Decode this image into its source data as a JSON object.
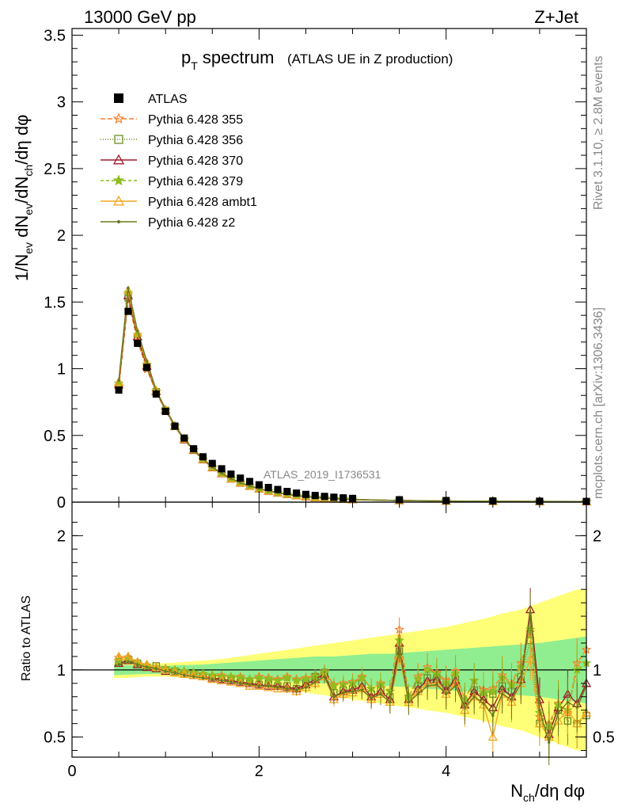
{
  "header": {
    "left": "13000 GeV pp",
    "right": "Z+Jet"
  },
  "side_text": {
    "rivet": "Rivet 3.1.10, ≥ 2.8M events",
    "mcplots": "mcplots.cern.ch [arXiv:1306.3436]"
  },
  "chart_data": [
    {
      "type": "line",
      "title_main": "p",
      "title_sub": "T",
      "title_rest": " spectrum",
      "title_paren": "(ATLAS UE in Z production)",
      "watermark": "ATLAS_2019_I1736531",
      "ylabel": {
        "p1": "1/N",
        "s1": "ev",
        "p2": " dN",
        "s2": "ev",
        "p3": "/dN",
        "s3": "ch",
        "p4": "/dη dφ"
      },
      "xlim": [
        0,
        5.5
      ],
      "ylim": [
        0,
        3.55
      ],
      "yticks": [
        "0",
        "0.5",
        "1",
        "1.5",
        "2",
        "2.5",
        "3",
        "3.5"
      ],
      "x": [
        0.5,
        0.6,
        0.7,
        0.8,
        0.9,
        1.0,
        1.1,
        1.2,
        1.3,
        1.4,
        1.5,
        1.6,
        1.7,
        1.8,
        1.9,
        2.0,
        2.1,
        2.2,
        2.3,
        2.4,
        2.5,
        2.6,
        2.7,
        2.8,
        2.9,
        3.0,
        3.5,
        4.0,
        4.5,
        5.0,
        5.5
      ],
      "data": {
        "name": "ATLAS",
        "values": [
          0.84,
          1.43,
          1.19,
          1.01,
          0.81,
          0.68,
          0.57,
          0.48,
          0.4,
          0.34,
          0.29,
          0.25,
          0.21,
          0.18,
          0.155,
          0.13,
          0.11,
          0.095,
          0.08,
          0.068,
          0.058,
          0.05,
          0.043,
          0.037,
          0.032,
          0.028,
          0.018,
          0.012,
          0.009,
          0.007,
          0.005
        ]
      },
      "mc": [
        0.88,
        1.55,
        1.24,
        1.02,
        0.83,
        0.69,
        0.57,
        0.47,
        0.39,
        0.32,
        0.26,
        0.215,
        0.175,
        0.145,
        0.12,
        0.1,
        0.083,
        0.07,
        0.058,
        0.049,
        0.041,
        0.035,
        0.03,
        0.026,
        0.022,
        0.019,
        0.012,
        0.008,
        0.006,
        0.005,
        0.004
      ]
    },
    {
      "type": "line",
      "ylabel": "Ratio to ATLAS",
      "xlabel": {
        "p1": "N",
        "s1": "ch",
        "p2": "/dη dφ"
      },
      "xlim": [
        0,
        5.5
      ],
      "ylim": [
        0.35,
        2.25
      ],
      "yticks": [
        "0.5",
        "1",
        "2"
      ],
      "xticks": [
        "0",
        "2",
        "4"
      ],
      "band_x": [
        0.45,
        0.6,
        0.8,
        1.0,
        1.2,
        1.4,
        1.6,
        1.8,
        2.0,
        2.2,
        2.4,
        2.6,
        2.8,
        3.0,
        3.2,
        3.4,
        3.6,
        3.8,
        4.0,
        4.2,
        4.4,
        4.6,
        4.8,
        5.0,
        5.2,
        5.4,
        5.5
      ],
      "band_stat": [
        0.04,
        0.035,
        0.03,
        0.03,
        0.035,
        0.04,
        0.05,
        0.06,
        0.07,
        0.08,
        0.09,
        0.1,
        0.1,
        0.11,
        0.12,
        0.12,
        0.13,
        0.14,
        0.15,
        0.16,
        0.17,
        0.18,
        0.19,
        0.2,
        0.22,
        0.24,
        0.25
      ],
      "band_tot": [
        0.06,
        0.06,
        0.05,
        0.05,
        0.06,
        0.07,
        0.08,
        0.1,
        0.12,
        0.14,
        0.16,
        0.18,
        0.2,
        0.22,
        0.24,
        0.26,
        0.28,
        0.3,
        0.32,
        0.35,
        0.38,
        0.42,
        0.45,
        0.5,
        0.55,
        0.6,
        0.6
      ],
      "x": [
        0.5,
        0.6,
        0.7,
        0.8,
        0.9,
        1.0,
        1.1,
        1.2,
        1.3,
        1.4,
        1.5,
        1.6,
        1.7,
        1.8,
        1.9,
        2.0,
        2.1,
        2.2,
        2.3,
        2.4,
        2.5,
        2.6,
        2.7,
        2.8,
        2.9,
        3.0,
        3.1,
        3.2,
        3.3,
        3.4,
        3.5,
        3.6,
        3.7,
        3.8,
        3.9,
        4.0,
        4.1,
        4.2,
        4.3,
        4.4,
        4.5,
        4.6,
        4.7,
        4.8,
        4.9,
        5.0,
        5.1,
        5.2,
        5.3,
        5.4,
        5.5
      ]
    }
  ],
  "series": [
    {
      "name": "ATLAS",
      "color": "#000000",
      "marker": "square-filled",
      "dash": "none",
      "ratio": [
        1,
        1,
        1,
        1,
        1,
        1,
        1,
        1,
        1,
        1,
        1,
        1,
        1,
        1,
        1,
        1,
        1,
        1,
        1,
        1,
        1,
        1,
        1,
        1,
        1,
        1,
        1,
        1,
        1,
        1,
        1,
        1,
        1,
        1,
        1,
        1,
        1,
        1,
        1,
        1,
        1,
        1,
        1,
        1,
        1,
        1,
        1,
        1,
        1,
        1,
        1
      ]
    },
    {
      "name": "Pythia 6.428 355",
      "color": "#ff7f2a",
      "marker": "star-open",
      "dash": "6,3",
      "ratio": [
        1.09,
        1.09,
        1.05,
        1.03,
        1.02,
        1.01,
        1.0,
        0.99,
        0.98,
        0.97,
        0.96,
        0.96,
        0.95,
        0.95,
        0.93,
        0.95,
        0.94,
        0.93,
        0.95,
        0.93,
        0.94,
        0.96,
        0.99,
        0.89,
        0.9,
        0.91,
        0.95,
        0.86,
        0.9,
        0.84,
        1.3,
        0.8,
        0.95,
        1.02,
        0.98,
        0.92,
        0.99,
        0.78,
        0.92,
        0.85,
        0.86,
        0.96,
        0.9,
        1.05,
        1.28,
        0.65,
        0.6,
        0.75,
        0.68,
        1.05,
        1.15
      ]
    },
    {
      "name": "Pythia 6.428 356",
      "color": "#6b8e23",
      "marker": "square-open",
      "dash": "1,2",
      "ratio": [
        1.06,
        1.08,
        1.05,
        1.02,
        1.03,
        1.0,
        0.99,
        0.97,
        0.96,
        0.95,
        0.94,
        0.93,
        0.92,
        0.91,
        0.9,
        0.89,
        0.9,
        0.88,
        0.88,
        0.86,
        0.9,
        0.95,
        0.98,
        0.83,
        0.85,
        0.86,
        0.9,
        0.82,
        0.85,
        0.8,
        1.14,
        0.79,
        0.88,
        0.94,
        0.94,
        0.87,
        0.93,
        0.75,
        0.85,
        0.8,
        0.82,
        0.88,
        0.84,
        0.95,
        1.22,
        0.6,
        0.55,
        0.7,
        0.62,
        0.6,
        0.66
      ]
    },
    {
      "name": "Pythia 6.428 370",
      "color": "#9b1c2c",
      "marker": "triangle-open",
      "dash": "none",
      "ratio": [
        1.05,
        1.07,
        1.04,
        1.02,
        1.01,
        0.99,
        0.98,
        0.97,
        0.96,
        0.95,
        0.94,
        0.93,
        0.92,
        0.91,
        0.9,
        0.89,
        0.88,
        0.88,
        0.87,
        0.86,
        0.89,
        0.93,
        0.97,
        0.8,
        0.84,
        0.85,
        0.88,
        0.8,
        0.84,
        0.78,
        1.2,
        0.78,
        0.86,
        0.92,
        0.93,
        0.85,
        0.92,
        0.74,
        0.84,
        0.78,
        0.72,
        0.86,
        0.8,
        0.93,
        1.45,
        0.78,
        0.52,
        0.72,
        0.82,
        0.75,
        0.9
      ]
    },
    {
      "name": "Pythia 6.428 379",
      "color": "#8fbc1f",
      "marker": "star-filled",
      "dash": "4,3",
      "ratio": [
        1.07,
        1.08,
        1.05,
        1.03,
        1.02,
        1.01,
        1.0,
        0.99,
        0.98,
        0.97,
        0.96,
        0.95,
        0.95,
        0.94,
        0.93,
        0.94,
        0.93,
        0.92,
        0.94,
        0.92,
        0.93,
        0.95,
        0.98,
        0.88,
        0.89,
        0.9,
        0.94,
        0.86,
        0.89,
        0.84,
        1.22,
        0.8,
        0.93,
        1.0,
        0.97,
        0.9,
        0.97,
        0.78,
        0.92,
        0.83,
        0.84,
        0.94,
        0.89,
        1.02,
        1.3,
        0.68,
        0.58,
        0.74,
        0.7,
        1.0,
        1.05
      ]
    },
    {
      "name": "Pythia 6.428 ambt1",
      "color": "#f5a623",
      "marker": "triangle-open",
      "dash": "none",
      "ratio": [
        1.1,
        1.1,
        1.06,
        1.04,
        1.02,
        1.0,
        0.98,
        0.97,
        0.96,
        0.95,
        0.93,
        0.92,
        0.91,
        0.9,
        0.88,
        0.88,
        0.87,
        0.86,
        0.86,
        0.84,
        0.87,
        0.9,
        0.95,
        0.78,
        0.82,
        0.83,
        0.86,
        0.78,
        0.82,
        0.76,
        1.1,
        0.76,
        0.84,
        0.9,
        0.9,
        0.82,
        0.9,
        0.7,
        0.8,
        0.74,
        0.5,
        0.82,
        0.76,
        0.9,
        1.08,
        0.6,
        0.5,
        0.62,
        0.7,
        0.6,
        0.68
      ]
    },
    {
      "name": "Pythia 6.428 z2",
      "color": "#6b7a1f",
      "marker": "dot",
      "dash": "none",
      "ratio": [
        1.04,
        1.06,
        1.04,
        1.02,
        1.01,
        0.99,
        0.98,
        0.96,
        0.95,
        0.94,
        0.93,
        0.92,
        0.91,
        0.9,
        0.89,
        0.88,
        0.88,
        0.87,
        0.86,
        0.85,
        0.87,
        0.91,
        0.95,
        0.8,
        0.83,
        0.84,
        0.85,
        0.79,
        0.82,
        0.76,
        1.15,
        0.76,
        0.82,
        0.88,
        0.89,
        0.82,
        0.88,
        0.72,
        0.8,
        0.75,
        0.66,
        0.82,
        0.78,
        0.9,
        1.42,
        0.7,
        0.46,
        0.68,
        0.76,
        0.72,
        0.88
      ]
    }
  ]
}
